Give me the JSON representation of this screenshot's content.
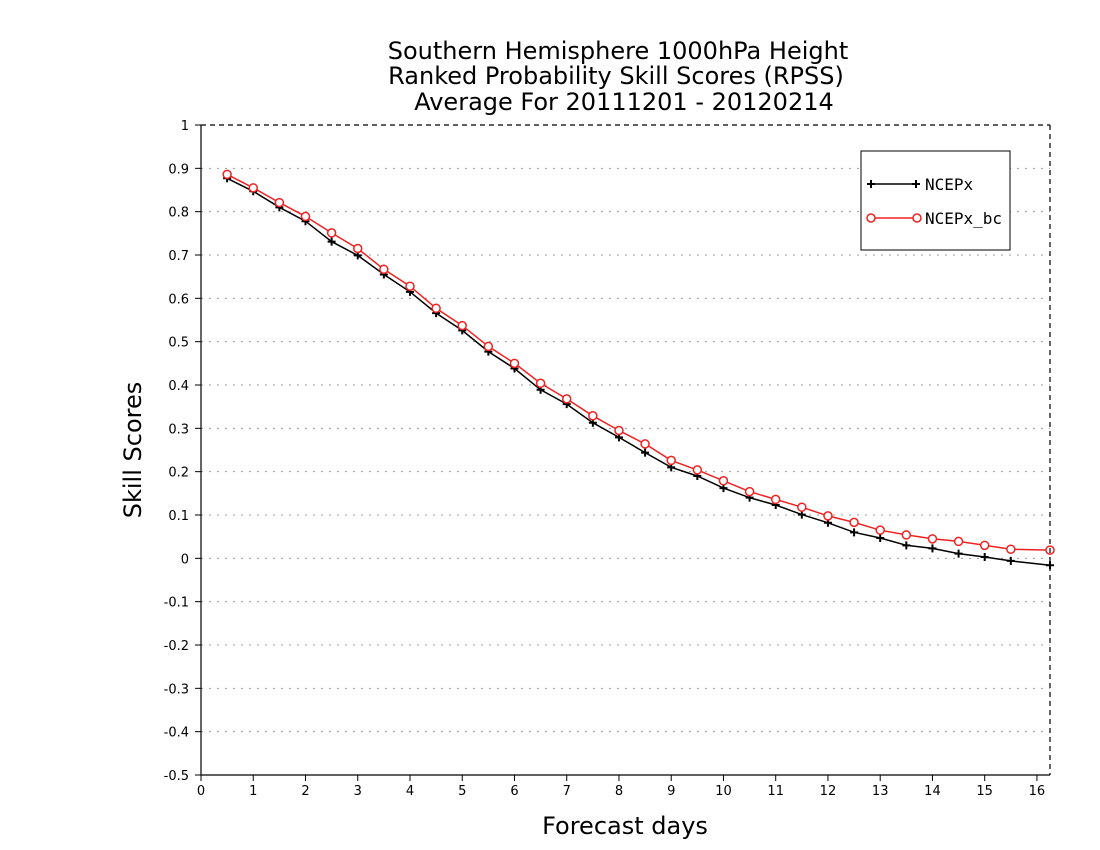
{
  "chart_data": {
    "type": "line",
    "title": [
      "Southern Hemisphere 1000hPa Height",
      "Ranked Probability Skill Scores (RPSS)",
      "Average For 20111201 - 20120214"
    ],
    "xlabel": "Forecast days",
    "ylabel": "Skill Scores",
    "xlim": [
      0,
      16.25
    ],
    "ylim": [
      -0.5,
      1
    ],
    "x_ticks": [
      0,
      1,
      2,
      3,
      4,
      5,
      6,
      7,
      8,
      9,
      10,
      11,
      12,
      13,
      14,
      15,
      16
    ],
    "y_ticks": [
      1,
      0.9,
      0.8,
      0.7,
      0.6,
      0.5,
      0.4,
      0.3,
      0.2,
      0.1,
      0,
      -0.1,
      -0.2,
      -0.3,
      -0.4,
      -0.5
    ],
    "grid": "horizontal dotted",
    "legend_position": "top-right",
    "x": [
      0.5,
      1.0,
      1.5,
      2.0,
      2.5,
      3.0,
      3.5,
      4.0,
      4.5,
      5.0,
      5.5,
      6.0,
      6.5,
      7.0,
      7.5,
      8.0,
      8.5,
      9.0,
      9.5,
      10.0,
      10.5,
      11.0,
      11.5,
      12.0,
      12.5,
      13.0,
      13.5,
      14.0,
      14.5,
      15.0,
      15.5,
      16.25
    ],
    "series": [
      {
        "name": "NCEPx",
        "color": "#000000",
        "marker": "plus",
        "values": [
          0.877,
          0.847,
          0.81,
          0.778,
          0.731,
          0.699,
          0.655,
          0.615,
          0.566,
          0.526,
          0.477,
          0.438,
          0.389,
          0.356,
          0.313,
          0.279,
          0.244,
          0.21,
          0.19,
          0.162,
          0.14,
          0.123,
          0.101,
          0.082,
          0.06,
          0.047,
          0.03,
          0.023,
          0.011,
          0.003,
          -0.006,
          -0.016
        ]
      },
      {
        "name": "NCEPx_bc",
        "color": "#ee2222",
        "marker": "circle",
        "values": [
          0.886,
          0.855,
          0.821,
          0.789,
          0.751,
          0.715,
          0.667,
          0.628,
          0.577,
          0.537,
          0.489,
          0.45,
          0.404,
          0.368,
          0.329,
          0.295,
          0.264,
          0.226,
          0.204,
          0.179,
          0.154,
          0.136,
          0.118,
          0.098,
          0.083,
          0.065,
          0.054,
          0.045,
          0.039,
          0.03,
          0.021,
          0.019
        ]
      }
    ]
  }
}
